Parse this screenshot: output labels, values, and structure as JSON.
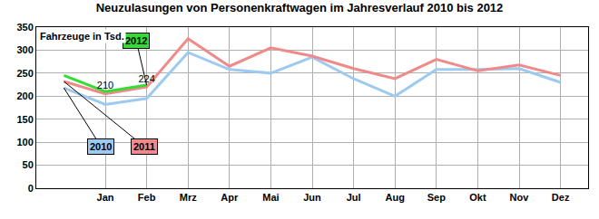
{
  "chart_data": {
    "type": "line",
    "title": "Neuzulasungen von Personenkraftwagen im Jahresverlauf 2010 bis 2012",
    "y_label": "Fahrzeuge in Tsd.",
    "categories": [
      null,
      "Jan",
      "Feb",
      "Mrz",
      "Apr",
      "Mai",
      "Jun",
      "Jul",
      "Aug",
      "Sep",
      "Okt",
      "Nov",
      "Dez"
    ],
    "series": [
      {
        "name": "2010",
        "color": "#9ccaf0",
        "values": [
          218,
          182,
          195,
          295,
          258,
          250,
          285,
          238,
          200,
          258,
          258,
          260,
          230
        ]
      },
      {
        "name": "2011",
        "color": "#f08a8a",
        "values": [
          232,
          205,
          220,
          325,
          265,
          305,
          287,
          260,
          238,
          280,
          255,
          268,
          245
        ]
      },
      {
        "name": "2012",
        "color": "#33dd33",
        "values": [
          245,
          210,
          224,
          null,
          null,
          null,
          null,
          null,
          null,
          null,
          null,
          null,
          null
        ],
        "value_labels": [
          null,
          "210",
          "224",
          null,
          null,
          null,
          null,
          null,
          null,
          null,
          null,
          null,
          null
        ]
      }
    ],
    "ylim": [
      0,
      350
    ],
    "yticks": [
      0,
      50,
      100,
      150,
      200,
      250,
      300,
      350
    ],
    "grid": true
  }
}
